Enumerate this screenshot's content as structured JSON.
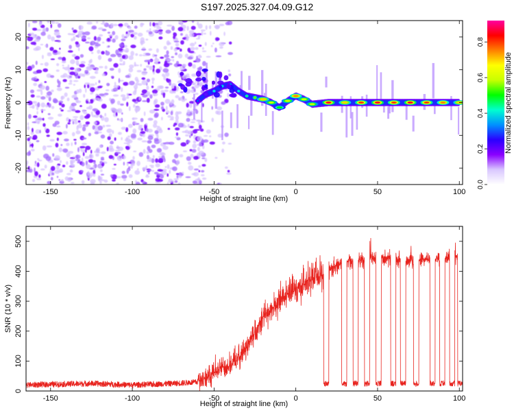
{
  "title": "S197.2025.327.04.09.G12",
  "chart_data": [
    {
      "type": "heatmap",
      "name": "spectrogram",
      "xlabel": "Height of straight line (km)",
      "ylabel": "Frequency (Hz)",
      "xlim": [
        -165,
        102
      ],
      "ylim": [
        -25,
        25
      ],
      "xticks": [
        -150,
        -100,
        -50,
        0,
        50,
        100
      ],
      "yticks": [
        -20,
        -10,
        0,
        10,
        20
      ],
      "colorbar": {
        "label": "Normalized spectral amplitude",
        "range": [
          0,
          0.92
        ],
        "ticks": [
          0.0,
          0.2,
          0.4,
          0.6,
          0.8
        ],
        "colors": [
          "#ffffff",
          "#d9c7ff",
          "#8a00ff",
          "#2a00ff",
          "#0090ff",
          "#00ffd0",
          "#00ff00",
          "#c8ff00",
          "#ffff00",
          "#ff8000",
          "#ff0000",
          "#ff00a0"
        ]
      },
      "features": {
        "noise_region_x": [
          -165,
          -55
        ],
        "signal_track": [
          {
            "x": -60,
            "freq": 0.5,
            "amp": 0.3
          },
          {
            "x": -55,
            "freq": 2.5,
            "amp": 0.4
          },
          {
            "x": -50,
            "freq": 3.5,
            "amp": 0.4
          },
          {
            "x": -45,
            "freq": 5.0,
            "amp": 0.4
          },
          {
            "x": -40,
            "freq": 5.5,
            "amp": 0.35
          },
          {
            "x": -35,
            "freq": 3.5,
            "amp": 0.4
          },
          {
            "x": -30,
            "freq": 2.0,
            "amp": 0.45
          },
          {
            "x": -25,
            "freq": 1.5,
            "amp": 0.55
          },
          {
            "x": -20,
            "freq": 1.0,
            "amp": 0.7
          },
          {
            "x": -15,
            "freq": 0.0,
            "amp": 0.6
          },
          {
            "x": -10,
            "freq": -1.5,
            "amp": 0.5
          },
          {
            "x": -5,
            "freq": 0.5,
            "amp": 0.6
          },
          {
            "x": 0,
            "freq": 2.0,
            "amp": 0.75
          },
          {
            "x": 5,
            "freq": 1.0,
            "amp": 0.6
          },
          {
            "x": 10,
            "freq": -0.5,
            "amp": 0.6
          },
          {
            "x": 20,
            "freq": 0.0,
            "amp": 0.85
          },
          {
            "x": 30,
            "freq": 0.0,
            "amp": 0.7
          },
          {
            "x": 40,
            "freq": 0.0,
            "amp": 0.8
          },
          {
            "x": 50,
            "freq": 0.0,
            "amp": 0.85
          },
          {
            "x": 60,
            "freq": 0.0,
            "amp": 0.8
          },
          {
            "x": 70,
            "freq": 0.0,
            "amp": 0.85
          },
          {
            "x": 80,
            "freq": 0.0,
            "amp": 0.8
          },
          {
            "x": 90,
            "freq": 0.0,
            "amp": 0.75
          },
          {
            "x": 100,
            "freq": 0.0,
            "amp": 0.7
          }
        ]
      }
    },
    {
      "type": "line",
      "name": "snr",
      "xlabel": "Height of straight line (km)",
      "ylabel": "SNR (10 * v/v)",
      "xlim": [
        -165,
        102
      ],
      "ylim": [
        0,
        550
      ],
      "xticks": [
        -150,
        -100,
        -50,
        0,
        50,
        100
      ],
      "yticks": [
        0,
        100,
        200,
        300,
        400,
        500
      ],
      "color": "#e8231e",
      "series": [
        {
          "name": "SNR",
          "x": [
            -165,
            -150,
            -125,
            -100,
            -75,
            -60,
            -55,
            -50,
            -45,
            -40,
            -35,
            -30,
            -25,
            -20,
            -15,
            -10,
            -5,
            0,
            5,
            10,
            15,
            20,
            25,
            30,
            40,
            50,
            60,
            70,
            80,
            90,
            100,
            102
          ],
          "values": [
            20,
            22,
            25,
            20,
            25,
            30,
            45,
            60,
            80,
            90,
            110,
            150,
            200,
            250,
            270,
            300,
            320,
            340,
            360,
            375,
            385,
            400,
            420,
            430,
            440,
            445,
            440,
            440,
            440,
            445,
            450,
            455
          ]
        }
      ],
      "dropouts_x": [
        17,
        28,
        35,
        42,
        49,
        58,
        64,
        72,
        82,
        88,
        94,
        99
      ]
    }
  ]
}
